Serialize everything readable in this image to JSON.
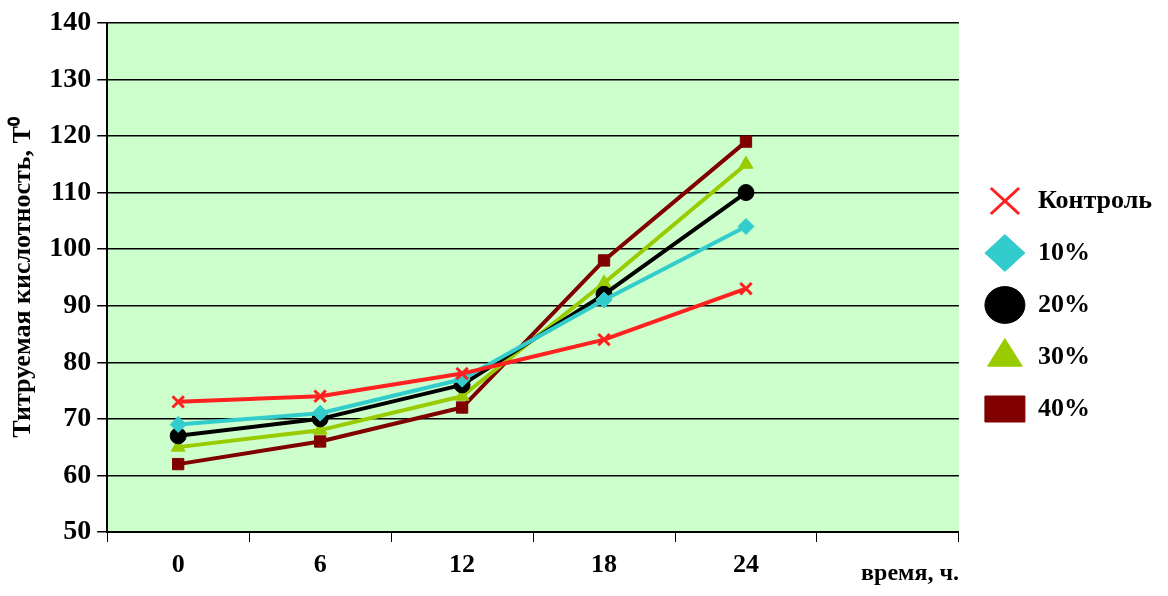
{
  "chart_data": {
    "type": "line",
    "xlabel": "время, ч.",
    "ylabel": "Титруемая кислотность, Т⁰",
    "categories": [
      "0",
      "6",
      "12",
      "18",
      "24",
      null
    ],
    "ylim": [
      50,
      140
    ],
    "yticks": [
      50,
      60,
      70,
      80,
      90,
      100,
      110,
      120,
      130,
      140
    ],
    "grid": "y",
    "legend": "right",
    "line_style": "solid",
    "series": [
      {
        "name": "Контроль",
        "color": "#ff2020",
        "marker": "cross",
        "values": [
          73,
          74,
          78,
          84,
          93,
          null
        ]
      },
      {
        "name": "10%",
        "color": "#33cccc",
        "marker": "diamond",
        "values": [
          69,
          71,
          77,
          91,
          104,
          null
        ]
      },
      {
        "name": "20%",
        "color": "#000000",
        "marker": "circle",
        "values": [
          67,
          70,
          76,
          92,
          110,
          null
        ]
      },
      {
        "name": "30%",
        "color": "#99cc00",
        "marker": "triangle",
        "values": [
          65,
          68,
          74,
          94,
          115,
          null
        ]
      },
      {
        "name": "40%",
        "color": "#800000",
        "marker": "square",
        "values": [
          62,
          66,
          72,
          98,
          119,
          null
        ]
      }
    ]
  }
}
